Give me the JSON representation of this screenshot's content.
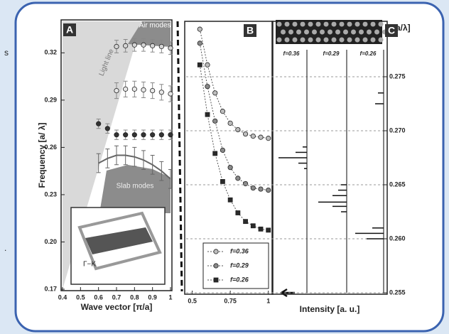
{
  "slide_fragments": [
    "s",
    "."
  ],
  "chart_data": [
    {
      "type": "errorbar",
      "panel": "A",
      "xlabel": "Wave vector [π/a]",
      "ylabel": "Frequency [a/ λ]",
      "annotations": [
        "Air modes",
        "Light line",
        "Slab modes",
        "Γ−K"
      ],
      "xlim": [
        0.4,
        1
      ],
      "ylim": [
        0.17,
        0.34
      ],
      "xticks": [
        0.4,
        0.5,
        0.6,
        0.7,
        0.8,
        0.9,
        1
      ],
      "yticks": [
        0.17,
        {
          "value": 0.2,
          "label": "0.20"
        },
        0.23,
        0.26,
        0.29,
        0.32
      ],
      "series": [
        {
          "color": "#d4d4d4",
          "marker": "circle",
          "x": [
            0.7,
            0.75,
            0.8,
            0.85,
            0.9,
            0.95,
            1
          ],
          "values": [
            0.324,
            0.3245,
            0.325,
            0.325,
            0.3245,
            0.324,
            0.323
          ],
          "errors": [
            0.004,
            0.004,
            0.004,
            0.004,
            0.004,
            0.004,
            0.004
          ]
        },
        {
          "color": "#e8e8e8",
          "marker": "circle",
          "x": [
            0.7,
            0.75,
            0.8,
            0.85,
            0.9,
            0.95,
            1
          ],
          "values": [
            0.296,
            0.297,
            0.297,
            0.2965,
            0.296,
            0.295,
            0.294
          ],
          "errors": [
            0.005,
            0.005,
            0.005,
            0.005,
            0.005,
            0.005,
            0.005
          ]
        },
        {
          "color": "#333333",
          "marker": "circle",
          "x": [
            0.6,
            0.65,
            0.7,
            0.75,
            0.8,
            0.85,
            0.9,
            0.95,
            1
          ],
          "values": [
            0.275,
            0.272,
            0.268,
            0.268,
            0.268,
            0.268,
            0.268,
            0.268,
            0.268
          ],
          "errors": [
            0.003,
            0.003,
            0.003,
            0.003,
            0.003,
            0.003,
            0.003,
            0.003,
            0.003
          ]
        },
        {
          "color": "#666666",
          "marker": "none",
          "x": [
            0.6,
            0.65,
            0.7,
            0.75,
            0.8,
            0.85,
            0.9,
            0.95,
            1
          ],
          "values": [
            0.25,
            0.253,
            0.255,
            0.255,
            0.254,
            0.252,
            0.249,
            0.245,
            0.24
          ],
          "errors": [
            0.006,
            0.006,
            0.006,
            0.006,
            0.006,
            0.006,
            0.006,
            0.006,
            0.006
          ]
        }
      ]
    },
    {
      "type": "line",
      "panel": "B",
      "xlim": [
        0.46,
        1.02
      ],
      "ylim": [
        0.255,
        0.28
      ],
      "xticks": [
        0.5,
        0.75,
        1
      ],
      "legend": "lower left",
      "series": [
        {
          "name": "f=0.36",
          "color": "#bdbdbd",
          "marker": "circle",
          "x": [
            0.55,
            0.6,
            0.65,
            0.7,
            0.75,
            0.8,
            0.85,
            0.9,
            0.95,
            1
          ],
          "values": [
            0.2794,
            0.2761,
            0.2735,
            0.2718,
            0.2707,
            0.2701,
            0.2697,
            0.2695,
            0.2694,
            0.2693
          ]
        },
        {
          "name": "f=0.29",
          "color": "#8a8a8a",
          "marker": "circle",
          "x": [
            0.55,
            0.6,
            0.65,
            0.7,
            0.75,
            0.8,
            0.85,
            0.9,
            0.95,
            1
          ],
          "values": [
            0.2781,
            0.2741,
            0.2709,
            0.2682,
            0.2666,
            0.2656,
            0.2651,
            0.2647,
            0.2646,
            0.2645
          ]
        },
        {
          "name": "f=0.26",
          "color": "#2a2a2a",
          "marker": "square",
          "x": [
            0.55,
            0.6,
            0.65,
            0.7,
            0.75,
            0.8,
            0.85,
            0.9,
            0.95,
            1
          ],
          "values": [
            0.2761,
            0.2715,
            0.2679,
            0.2653,
            0.2636,
            0.2624,
            0.2616,
            0.2612,
            0.2609,
            0.2608
          ]
        }
      ]
    },
    {
      "type": "spectrum",
      "panel": "C",
      "xlabel": "Intensity [a. u.]",
      "ylabel": "[a/λ]",
      "ylim": [
        0.255,
        0.28
      ],
      "yticks": [
        0.255,
        {
          "value": 0.26,
          "label": "0.260"
        },
        0.265,
        {
          "value": 0.27,
          "label": "0.270"
        },
        0.275
      ],
      "grid": true,
      "spectra": [
        {
          "name": "f=0.36",
          "frequencies": [
            0.2665,
            0.267,
            0.2675,
            0.268,
            0.2685
          ],
          "intensities": [
            0.1,
            0.3,
            1,
            0.4,
            0.15
          ]
        },
        {
          "name": "f=0.29",
          "frequencies": [
            0.2625,
            0.263,
            0.2634,
            0.264,
            0.2645,
            0.265
          ],
          "intensities": [
            0.2,
            0.5,
            1,
            0.5,
            0.3,
            0.2
          ]
        },
        {
          "name": "f=0.26",
          "frequencies": [
            0.26,
            0.2605,
            0.261,
            0.2725,
            0.2735
          ],
          "intensities": [
            0.6,
            1,
            0.4,
            0.3,
            0.2
          ]
        }
      ]
    }
  ]
}
